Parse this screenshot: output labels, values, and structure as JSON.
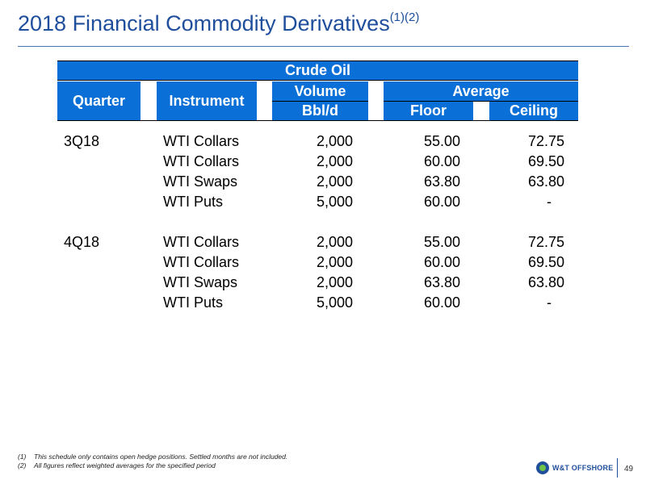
{
  "title": "2018 Financial Commodity Derivatives",
  "title_superscript": "(1)(2)",
  "table": {
    "group_header": "Crude Oil",
    "headers": {
      "quarter": "Quarter",
      "instrument": "Instrument",
      "volume": "Volume",
      "volume_unit": "Bbl/d",
      "average": "Average",
      "floor": "Floor",
      "ceiling": "Ceiling"
    },
    "rows": [
      {
        "quarter": "3Q18",
        "instrument": "WTI Collars",
        "volume": "2,000",
        "floor": "55.00",
        "ceiling": "72.75"
      },
      {
        "quarter": "",
        "instrument": "WTI Collars",
        "volume": "2,000",
        "floor": "60.00",
        "ceiling": "69.50"
      },
      {
        "quarter": "",
        "instrument": "WTI Swaps",
        "volume": "2,000",
        "floor": "63.80",
        "ceiling": "63.80"
      },
      {
        "quarter": "",
        "instrument": "WTI Puts",
        "volume": "5,000",
        "floor": "60.00",
        "ceiling": "-"
      },
      {
        "quarter": "4Q18",
        "instrument": "WTI Collars",
        "volume": "2,000",
        "floor": "55.00",
        "ceiling": "72.75"
      },
      {
        "quarter": "",
        "instrument": "WTI Collars",
        "volume": "2,000",
        "floor": "60.00",
        "ceiling": "69.50"
      },
      {
        "quarter": "",
        "instrument": "WTI Swaps",
        "volume": "2,000",
        "floor": "63.80",
        "ceiling": "63.80"
      },
      {
        "quarter": "",
        "instrument": "WTI Puts",
        "volume": "5,000",
        "floor": "60.00",
        "ceiling": "-"
      }
    ]
  },
  "footnotes": [
    {
      "num": "(1)",
      "text": "This schedule only contains open hedge positions.  Settled months are not included."
    },
    {
      "num": "(2)",
      "text": "All figures reflect weighted averages for the specified period"
    }
  ],
  "logo_text": "W&T OFFSHORE",
  "page_number": "49",
  "colors": {
    "header_blue": "#0a6fd6",
    "title_blue": "#1f4e9c"
  }
}
